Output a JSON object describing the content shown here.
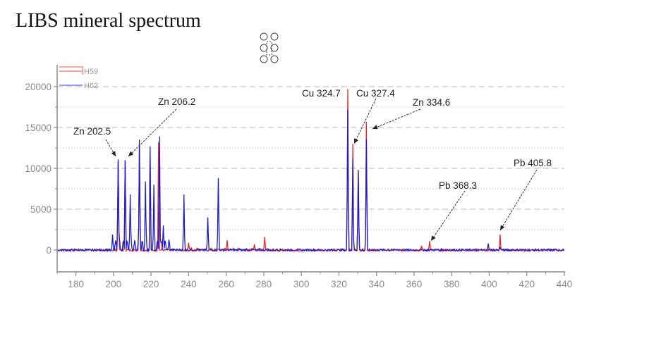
{
  "page": {
    "title": "LIBS mineral spectrum",
    "widget_handle_icon": "drag-handle-icon"
  },
  "colors": {
    "H59": "#e8262a",
    "H62": "#1d1dd0",
    "axis": "#8a8a8a",
    "grid": "#c8c8c8"
  },
  "chart_data": {
    "type": "line",
    "title": "LIBS mineral spectrum",
    "xlabel": "",
    "ylabel": "",
    "xlim": [
      170,
      440
    ],
    "ylim": [
      -2500,
      21500
    ],
    "x_ticks": [
      180,
      200,
      220,
      240,
      260,
      280,
      300,
      320,
      340,
      360,
      380,
      400,
      420,
      440
    ],
    "y_ticks": [
      0,
      5000,
      10000,
      15000,
      20000
    ],
    "grid": "horizontal dashed",
    "legend": {
      "position": "top-left",
      "entries": [
        "H59",
        "H62"
      ]
    },
    "series": [
      {
        "name": "H59",
        "color": "#e8262a",
        "peaks": [
          {
            "x": 202.5,
            "y": 10800
          },
          {
            "x": 206.2,
            "y": 10900
          },
          {
            "x": 213.8,
            "y": 13000
          },
          {
            "x": 219.5,
            "y": 12000
          },
          {
            "x": 224.0,
            "y": 13200
          },
          {
            "x": 240.0,
            "y": 900
          },
          {
            "x": 260.5,
            "y": 1200
          },
          {
            "x": 275.0,
            "y": 700
          },
          {
            "x": 280.5,
            "y": 1600
          },
          {
            "x": 324.7,
            "y": 19700
          },
          {
            "x": 327.4,
            "y": 13000
          },
          {
            "x": 330.3,
            "y": 9700
          },
          {
            "x": 334.6,
            "y": 15700
          },
          {
            "x": 364.0,
            "y": 500
          },
          {
            "x": 368.3,
            "y": 1100
          },
          {
            "x": 405.8,
            "y": 1900
          }
        ]
      },
      {
        "name": "H62",
        "color": "#1d1dd0",
        "peaks": [
          {
            "x": 199.5,
            "y": 1900
          },
          {
            "x": 202.5,
            "y": 11100
          },
          {
            "x": 206.2,
            "y": 11000
          },
          {
            "x": 208.9,
            "y": 6800
          },
          {
            "x": 213.8,
            "y": 13500
          },
          {
            "x": 217.0,
            "y": 8400
          },
          {
            "x": 219.5,
            "y": 12700
          },
          {
            "x": 221.5,
            "y": 8000
          },
          {
            "x": 224.5,
            "y": 13900
          },
          {
            "x": 226.5,
            "y": 3000
          },
          {
            "x": 237.5,
            "y": 6800
          },
          {
            "x": 250.2,
            "y": 4000
          },
          {
            "x": 255.8,
            "y": 8800
          },
          {
            "x": 324.7,
            "y": 17200
          },
          {
            "x": 327.4,
            "y": 11200
          },
          {
            "x": 330.3,
            "y": 9800
          },
          {
            "x": 334.6,
            "y": 13600
          },
          {
            "x": 399.5,
            "y": 800
          },
          {
            "x": 405.8,
            "y": 300
          }
        ]
      }
    ],
    "annotations": [
      {
        "label": "Zn 202.5",
        "x": 202.5
      },
      {
        "label": "Zn 206.2",
        "x": 206.2
      },
      {
        "label": "Cu 324.7",
        "x": 324.7
      },
      {
        "label": "Cu 327.4",
        "x": 327.4
      },
      {
        "label": "Zn 334.6",
        "x": 334.6
      },
      {
        "label": "Pb 368.3",
        "x": 368.3
      },
      {
        "label": "Pb 405.8",
        "x": 405.8
      }
    ]
  }
}
